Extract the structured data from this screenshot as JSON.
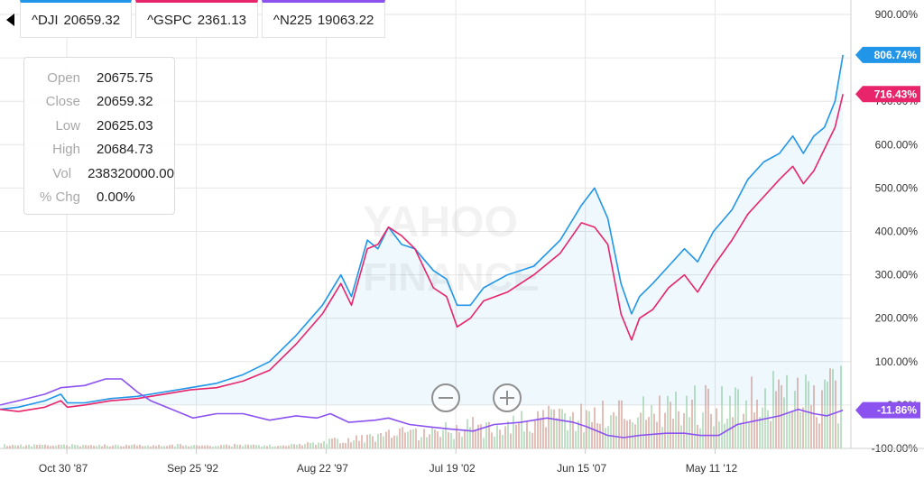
{
  "tabs": [
    {
      "label": "^DJI",
      "value": "20659.32",
      "color": "#2196e8"
    },
    {
      "label": "^GSPC",
      "value": "2361.13",
      "color": "#e8256b"
    },
    {
      "label": "^N225",
      "value": "19063.22",
      "color": "#8c52f0"
    }
  ],
  "tooltip": {
    "rows": [
      {
        "key": "Open",
        "value": "20675.75"
      },
      {
        "key": "Close",
        "value": "20659.32"
      },
      {
        "key": "Low",
        "value": "20625.03"
      },
      {
        "key": "High",
        "value": "20684.73"
      },
      {
        "key": "Vol",
        "value": "238320000.00"
      },
      {
        "key": "% Chg",
        "value": "0.00%"
      }
    ]
  },
  "watermark": [
    "YAHOO",
    "FINANCE"
  ],
  "icons": {
    "back": "back-arrow-icon",
    "zoom_out": "zoom-out-icon",
    "zoom_in": "zoom-in-icon"
  },
  "chart_data": {
    "type": "line",
    "y_unit": "percent change",
    "ylim": [
      -100,
      900
    ],
    "y_ticks": [
      -100,
      0,
      100,
      200,
      300,
      400,
      500,
      600,
      700,
      800,
      900
    ],
    "y_tick_labels": [
      "-100.00%",
      "0.00%",
      "100.00%",
      "200.00%",
      "300.00%",
      "400.00%",
      "500.00%",
      "600.00%",
      "700.00%",
      "800.00%",
      "900.00%"
    ],
    "xlim": [
      1985.3,
      2017.5
    ],
    "x_ticks": [
      {
        "x": 1987.83,
        "label": "Oct 30 '87"
      },
      {
        "x": 1992.73,
        "label": "Sep 25 '92"
      },
      {
        "x": 1997.64,
        "label": "Aug 22 '97"
      },
      {
        "x": 2002.55,
        "label": "Jul 19 '02"
      },
      {
        "x": 2007.45,
        "label": "Jun 15 '07"
      },
      {
        "x": 2012.36,
        "label": "May 11 '12"
      }
    ],
    "grid": true,
    "series": [
      {
        "name": "^DJI",
        "color": "#2196e8",
        "end_label": "806.74%",
        "x": [
          1985.3,
          1986,
          1987,
          1987.6,
          1987.85,
          1988.5,
          1989.5,
          1990.5,
          1991.5,
          1992.5,
          1993.5,
          1994.5,
          1995.5,
          1996.5,
          1997.5,
          1998.2,
          1998.6,
          1999.2,
          1999.6,
          2000.0,
          2000.5,
          2001.0,
          2001.7,
          2002.2,
          2002.6,
          2003.1,
          2003.6,
          2004.5,
          2005.5,
          2006.5,
          2007.3,
          2007.8,
          2008.3,
          2008.8,
          2009.2,
          2009.5,
          2010.0,
          2010.6,
          2011.2,
          2011.7,
          2012.3,
          2013.0,
          2013.6,
          2014.2,
          2014.8,
          2015.3,
          2015.7,
          2016.1,
          2016.5,
          2016.9,
          2017.2
        ],
        "y": [
          -10,
          -5,
          10,
          25,
          5,
          5,
          15,
          20,
          30,
          40,
          50,
          70,
          100,
          160,
          230,
          300,
          250,
          380,
          360,
          410,
          370,
          360,
          310,
          290,
          230,
          230,
          270,
          300,
          320,
          380,
          460,
          500,
          430,
          280,
          210,
          250,
          280,
          320,
          360,
          330,
          400,
          450,
          520,
          560,
          580,
          620,
          580,
          620,
          640,
          700,
          806.74
        ]
      },
      {
        "name": "^GSPC",
        "color": "#e8256b",
        "end_label": "716.43%",
        "x": [
          1985.3,
          1986,
          1987,
          1987.6,
          1987.85,
          1988.5,
          1989.5,
          1990.5,
          1991.5,
          1992.5,
          1993.5,
          1994.5,
          1995.5,
          1996.5,
          1997.5,
          1998.2,
          1998.6,
          1999.2,
          1999.6,
          2000.0,
          2000.5,
          2001.0,
          2001.7,
          2002.2,
          2002.6,
          2003.1,
          2003.6,
          2004.5,
          2005.5,
          2006.5,
          2007.3,
          2007.8,
          2008.3,
          2008.8,
          2009.2,
          2009.5,
          2010.0,
          2010.6,
          2011.2,
          2011.7,
          2012.3,
          2013.0,
          2013.6,
          2014.2,
          2014.8,
          2015.3,
          2015.7,
          2016.1,
          2016.5,
          2016.9,
          2017.2
        ],
        "y": [
          -10,
          -15,
          -5,
          10,
          -5,
          0,
          10,
          15,
          25,
          35,
          40,
          55,
          80,
          140,
          210,
          280,
          230,
          360,
          370,
          410,
          390,
          360,
          270,
          250,
          180,
          200,
          240,
          260,
          300,
          350,
          420,
          410,
          370,
          210,
          150,
          200,
          220,
          270,
          300,
          260,
          320,
          380,
          440,
          480,
          520,
          550,
          510,
          540,
          590,
          640,
          716.43
        ]
      },
      {
        "name": "^N225",
        "color": "#8c52f0",
        "end_label": "-11.86%",
        "x": [
          1985.3,
          1986,
          1987,
          1987.6,
          1988.5,
          1989.3,
          1989.9,
          1990.5,
          1991.0,
          1991.6,
          1992.6,
          1993.5,
          1994.5,
          1995.5,
          1996.5,
          1997.3,
          1997.8,
          1998.5,
          1999.5,
          2000.0,
          2000.8,
          2001.5,
          2002.3,
          2003.2,
          2004.0,
          2005.0,
          2006.0,
          2007.0,
          2007.5,
          2008.3,
          2008.9,
          2009.5,
          2010.5,
          2011.2,
          2011.8,
          2012.5,
          2013.2,
          2014.0,
          2014.8,
          2015.5,
          2016.1,
          2016.6,
          2017.2
        ],
        "y": [
          0,
          10,
          25,
          40,
          45,
          60,
          60,
          30,
          10,
          -5,
          -30,
          -20,
          -20,
          -35,
          -25,
          -30,
          -20,
          -40,
          -35,
          -30,
          -45,
          -50,
          -55,
          -60,
          -45,
          -40,
          -30,
          -40,
          -50,
          -70,
          -75,
          -70,
          -65,
          -65,
          -70,
          -70,
          -45,
          -35,
          -25,
          -10,
          -20,
          -25,
          -11.86
        ]
      }
    ]
  }
}
